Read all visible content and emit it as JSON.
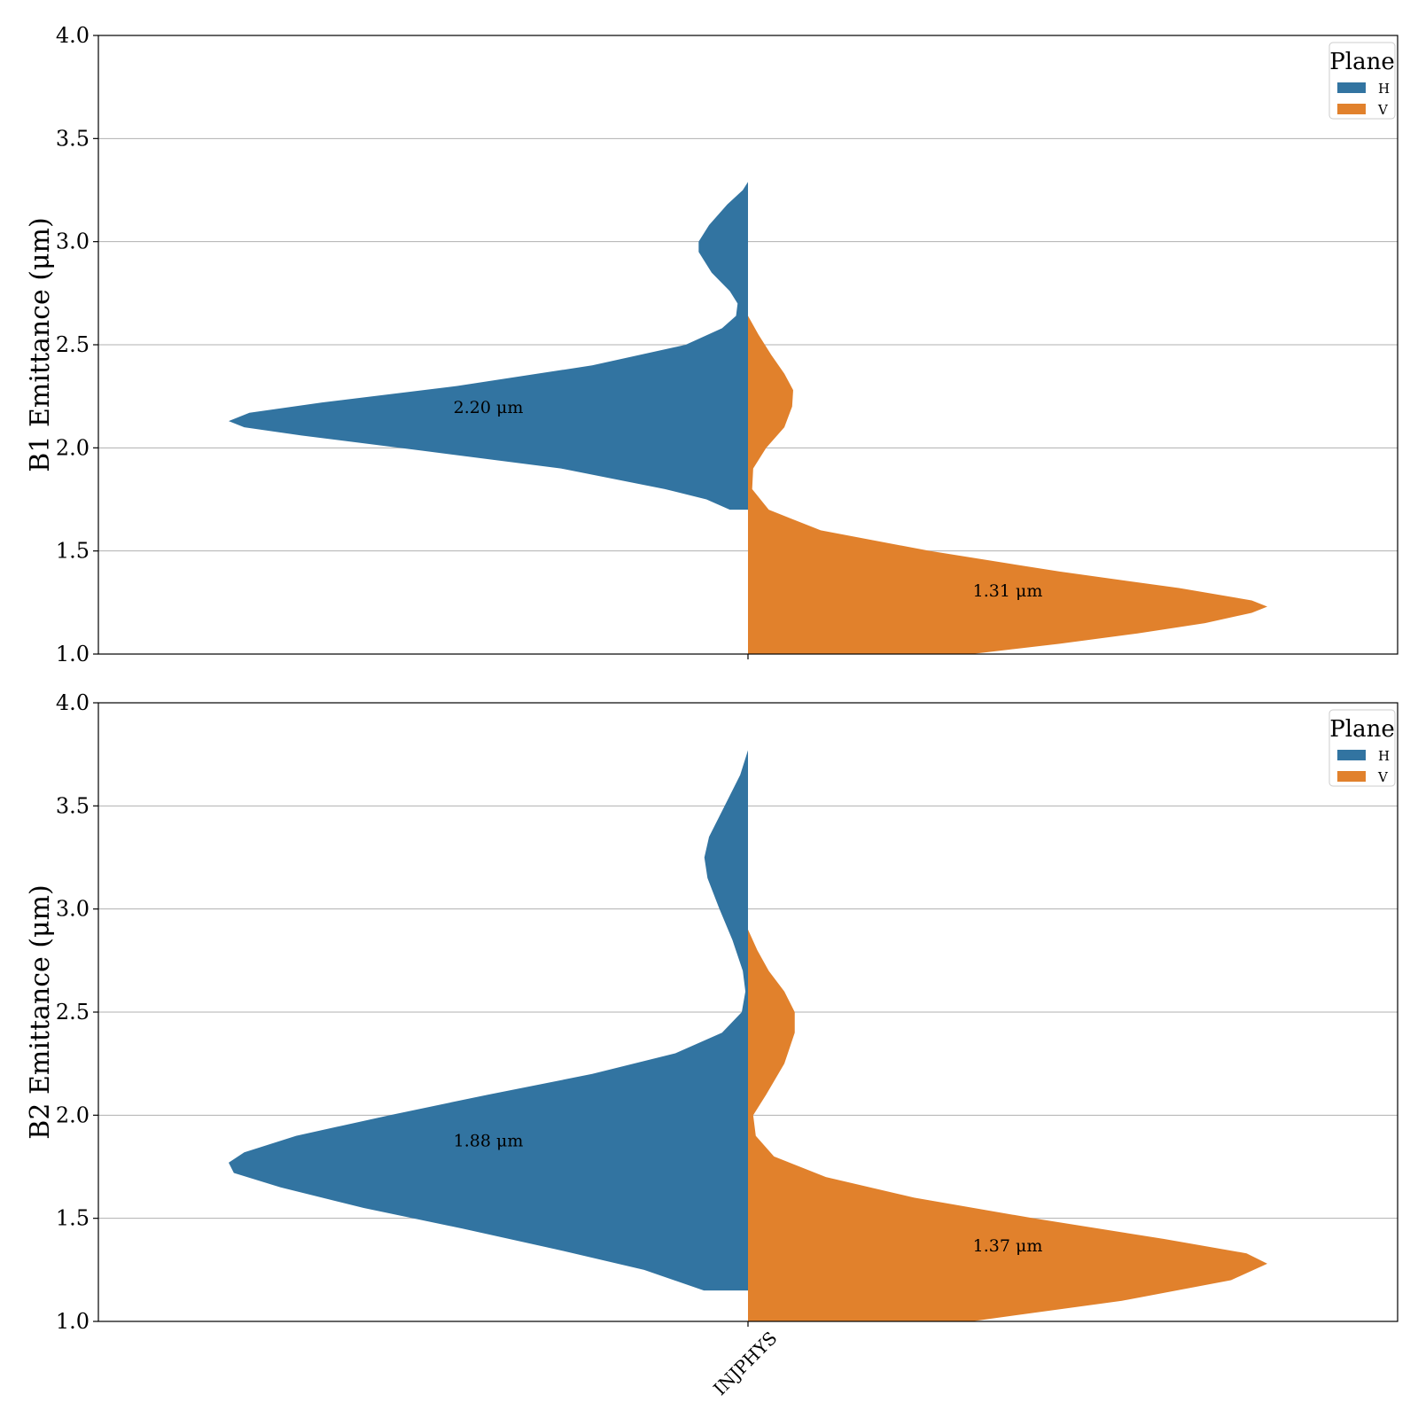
{
  "chart_data": [
    {
      "type": "violin",
      "ylabel": "B1 Emittance (μm)",
      "ylim": [
        1.0,
        4.0
      ],
      "yticks": [
        "1.0",
        "1.5",
        "2.0",
        "2.5",
        "3.0",
        "3.5",
        "4.0"
      ],
      "categories": [
        "INJPHYS"
      ],
      "grid": "y",
      "legend": {
        "title": "Plane",
        "placement": "top-right",
        "entries": [
          "H",
          "V"
        ]
      },
      "series": [
        {
          "name": "H",
          "color": "#3274a1",
          "side": "left",
          "median_label": "2.20 μm",
          "label_y": 2.2,
          "y_range": [
            1.7,
            3.29
          ],
          "density": [
            [
              1.7,
              0.035
            ],
            [
              1.75,
              0.08
            ],
            [
              1.8,
              0.16
            ],
            [
              1.9,
              0.36
            ],
            [
              2.0,
              0.67
            ],
            [
              2.06,
              0.86
            ],
            [
              2.1,
              0.97
            ],
            [
              2.13,
              1.0
            ],
            [
              2.17,
              0.96
            ],
            [
              2.22,
              0.82
            ],
            [
              2.3,
              0.56
            ],
            [
              2.4,
              0.3
            ],
            [
              2.5,
              0.12
            ],
            [
              2.58,
              0.05
            ],
            [
              2.64,
              0.023
            ],
            [
              2.7,
              0.02
            ],
            [
              2.76,
              0.035
            ],
            [
              2.85,
              0.07
            ],
            [
              2.95,
              0.095
            ],
            [
              3.0,
              0.095
            ],
            [
              3.08,
              0.075
            ],
            [
              3.18,
              0.04
            ],
            [
              3.25,
              0.01
            ],
            [
              3.29,
              0.0
            ]
          ]
        },
        {
          "name": "V",
          "color": "#e1812c",
          "side": "right",
          "median_label": "1.31 μm",
          "label_y": 1.31,
          "y_range": [
            1.0,
            2.64
          ],
          "density": [
            [
              1.0,
              0.43
            ],
            [
              1.05,
              0.6
            ],
            [
              1.1,
              0.75
            ],
            [
              1.15,
              0.88
            ],
            [
              1.2,
              0.97
            ],
            [
              1.23,
              1.0
            ],
            [
              1.26,
              0.97
            ],
            [
              1.32,
              0.83
            ],
            [
              1.4,
              0.6
            ],
            [
              1.5,
              0.35
            ],
            [
              1.6,
              0.14
            ],
            [
              1.7,
              0.04
            ],
            [
              1.8,
              0.008
            ],
            [
              1.9,
              0.01
            ],
            [
              2.0,
              0.035
            ],
            [
              2.1,
              0.07
            ],
            [
              2.2,
              0.085
            ],
            [
              2.28,
              0.087
            ],
            [
              2.36,
              0.07
            ],
            [
              2.45,
              0.045
            ],
            [
              2.55,
              0.02
            ],
            [
              2.64,
              0.0
            ]
          ]
        }
      ]
    },
    {
      "type": "violin",
      "ylabel": "B2 Emittance (μm)",
      "ylim": [
        1.0,
        4.0
      ],
      "yticks": [
        "1.0",
        "1.5",
        "2.0",
        "2.5",
        "3.0",
        "3.5",
        "4.0"
      ],
      "categories": [
        "INJPHYS"
      ],
      "grid": "y",
      "legend": {
        "title": "Plane",
        "placement": "top-right",
        "entries": [
          "H",
          "V"
        ]
      },
      "series": [
        {
          "name": "H",
          "color": "#3274a1",
          "side": "left",
          "median_label": "1.88 μm",
          "label_y": 1.88,
          "y_range": [
            1.15,
            3.77
          ],
          "density": [
            [
              1.15,
              0.085
            ],
            [
              1.25,
              0.2
            ],
            [
              1.35,
              0.37
            ],
            [
              1.45,
              0.55
            ],
            [
              1.55,
              0.74
            ],
            [
              1.65,
              0.9
            ],
            [
              1.72,
              0.99
            ],
            [
              1.77,
              1.0
            ],
            [
              1.82,
              0.97
            ],
            [
              1.9,
              0.87
            ],
            [
              2.0,
              0.69
            ],
            [
              2.1,
              0.5
            ],
            [
              2.2,
              0.3
            ],
            [
              2.3,
              0.14
            ],
            [
              2.4,
              0.05
            ],
            [
              2.5,
              0.012
            ],
            [
              2.6,
              0.005
            ],
            [
              2.7,
              0.01
            ],
            [
              2.85,
              0.03
            ],
            [
              3.0,
              0.055
            ],
            [
              3.15,
              0.078
            ],
            [
              3.25,
              0.084
            ],
            [
              3.35,
              0.075
            ],
            [
              3.5,
              0.045
            ],
            [
              3.65,
              0.015
            ],
            [
              3.77,
              0.0
            ]
          ]
        },
        {
          "name": "V",
          "color": "#e1812c",
          "side": "right",
          "median_label": "1.37 μm",
          "label_y": 1.37,
          "y_range": [
            1.0,
            2.9
          ],
          "density": [
            [
              1.0,
              0.43
            ],
            [
              1.1,
              0.72
            ],
            [
              1.2,
              0.93
            ],
            [
              1.28,
              1.0
            ],
            [
              1.33,
              0.96
            ],
            [
              1.4,
              0.8
            ],
            [
              1.5,
              0.55
            ],
            [
              1.6,
              0.32
            ],
            [
              1.7,
              0.15
            ],
            [
              1.8,
              0.05
            ],
            [
              1.9,
              0.015
            ],
            [
              2.0,
              0.01
            ],
            [
              2.1,
              0.035
            ],
            [
              2.25,
              0.07
            ],
            [
              2.4,
              0.09
            ],
            [
              2.5,
              0.09
            ],
            [
              2.6,
              0.07
            ],
            [
              2.7,
              0.04
            ],
            [
              2.8,
              0.018
            ],
            [
              2.9,
              0.0
            ]
          ]
        }
      ]
    }
  ]
}
